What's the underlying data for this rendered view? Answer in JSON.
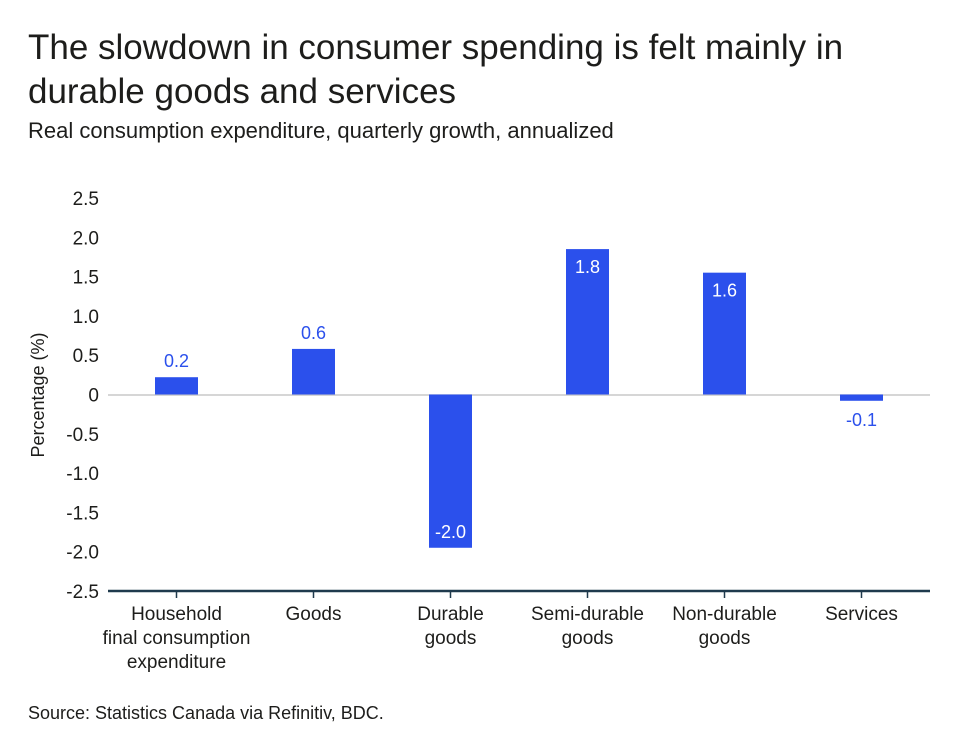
{
  "chart_data": {
    "type": "bar",
    "title": "The slowdown in consumer spending is felt mainly in durable goods and services",
    "subtitle": "Real consumption expenditure, quarterly growth, annualized",
    "ylabel": "Percentage (%)",
    "xlabel": "",
    "ylim": [
      -2.5,
      2.5
    ],
    "yticks": [
      2.5,
      2.0,
      1.5,
      1.0,
      0.5,
      0,
      -0.5,
      -1.0,
      -1.5,
      -2.0,
      -2.5
    ],
    "ytick_labels": [
      "2.5",
      "2.0",
      "1.5",
      "1.0",
      "0.5",
      "0",
      "-0.5",
      "-1.0",
      "-1.5",
      "-2.0",
      "-2.5"
    ],
    "categories": [
      [
        "Household",
        "final consumption",
        "expenditure"
      ],
      [
        "Goods"
      ],
      [
        "Durable",
        "goods"
      ],
      [
        "Semi-durable",
        "goods"
      ],
      [
        "Non-durable",
        "goods"
      ],
      [
        "Services"
      ]
    ],
    "values": [
      0.2,
      0.6,
      -2.0,
      1.8,
      1.6,
      -0.1
    ],
    "bar_heights": [
      0.22,
      0.58,
      -1.95,
      1.85,
      1.55,
      -0.08
    ],
    "data_labels": [
      "0.2",
      "0.6",
      "-2.0",
      "1.8",
      "1.6",
      "-0.1"
    ],
    "grid": false,
    "legend": "none",
    "source": "Source: Statistics Canada via Refinitiv, BDC.",
    "colors": {
      "bar": "#2b50ec",
      "label_outside": "#2b50ec",
      "label_inside": "#ffffff",
      "axis": "#1f3a4d",
      "zero_line": "#c8c8c8"
    }
  }
}
